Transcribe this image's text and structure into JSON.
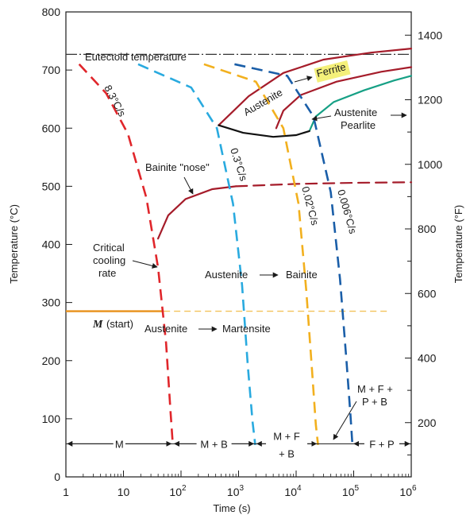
{
  "chart_data": {
    "type": "line",
    "title": "",
    "xlabel": "Time (s)",
    "ylabel": "Temperature (°C)",
    "y2label": "Temperature (°F)",
    "xscale": "log",
    "xlim": [
      1,
      1000000
    ],
    "ylim": [
      0,
      800
    ],
    "y2lim": [
      32,
      1472
    ],
    "xticks": [
      {
        "v": 1,
        "label": "1",
        "exp": ""
      },
      {
        "v": 10,
        "label": "10",
        "exp": ""
      },
      {
        "v": 100,
        "label": "10",
        "exp": "2"
      },
      {
        "v": 1000,
        "label": "10",
        "exp": "3"
      },
      {
        "v": 10000,
        "label": "10",
        "exp": "4"
      },
      {
        "v": 100000,
        "label": "10",
        "exp": "5"
      },
      {
        "v": 1000000,
        "label": "10",
        "exp": "6"
      }
    ],
    "yticks": [
      0,
      100,
      200,
      300,
      400,
      500,
      600,
      700,
      800
    ],
    "y2ticks": [
      200,
      400,
      600,
      800,
      1000,
      1200,
      1400
    ],
    "eutectoid_temperature": 727,
    "martensite_start": 285,
    "cooling_curves": [
      {
        "name": "8.3°C/s",
        "color": "#e0262b",
        "points": [
          [
            1.7,
            710
          ],
          [
            5,
            660
          ],
          [
            12,
            590
          ],
          [
            25,
            480
          ],
          [
            40,
            360
          ],
          [
            55,
            230
          ],
          [
            66,
            110
          ],
          [
            72,
            55
          ]
        ]
      },
      {
        "name": "0.3°C/s",
        "color": "#29aadf",
        "points": [
          [
            18,
            710
          ],
          [
            150,
            670
          ],
          [
            420,
            600
          ],
          [
            800,
            470
          ],
          [
            1150,
            330
          ],
          [
            1450,
            190
          ],
          [
            1750,
            95
          ],
          [
            1950,
            55
          ]
        ]
      },
      {
        "name": "0.02°C/s",
        "color": "#f2b01e",
        "points": [
          [
            250,
            710
          ],
          [
            2000,
            680
          ],
          [
            6000,
            600
          ],
          [
            11000,
            470
          ],
          [
            15000,
            320
          ],
          [
            19000,
            180
          ],
          [
            22000,
            90
          ],
          [
            24000,
            55
          ]
        ]
      },
      {
        "name": "0.006°C/s",
        "color": "#1a5ea8",
        "points": [
          [
            850,
            710
          ],
          [
            7000,
            690
          ],
          [
            20000,
            620
          ],
          [
            40000,
            490
          ],
          [
            58000,
            340
          ],
          [
            75000,
            200
          ],
          [
            88000,
            105
          ],
          [
            95000,
            55
          ]
        ]
      }
    ],
    "transformation_curves": [
      {
        "name": "Austenite → Ferrite start",
        "color": "#a51c2a",
        "points": [
          [
            450,
            605
          ],
          [
            1500,
            655
          ],
          [
            6000,
            695
          ],
          [
            30000,
            718
          ],
          [
            200000,
            730
          ],
          [
            1000000,
            737
          ]
        ]
      },
      {
        "name": "Austenite → Pearlite start",
        "color": "#a51c2a",
        "points": [
          [
            4500,
            600
          ],
          [
            6000,
            630
          ],
          [
            12000,
            657
          ],
          [
            50000,
            680
          ],
          [
            300000,
            697
          ],
          [
            1000000,
            705
          ]
        ]
      },
      {
        "name": "Austenite → Pearlite finish",
        "color": "#16a085",
        "points": [
          [
            17000,
            595
          ],
          [
            22000,
            620
          ],
          [
            45000,
            645
          ],
          [
            150000,
            665
          ],
          [
            500000,
            682
          ],
          [
            1000000,
            690
          ]
        ]
      },
      {
        "name": "Ferrite/Pearlite nose",
        "color": "#111111",
        "points": [
          [
            450,
            605
          ],
          [
            1200,
            592
          ],
          [
            4000,
            585
          ],
          [
            10000,
            588
          ],
          [
            17000,
            595
          ]
        ]
      },
      {
        "name": "Bainite start",
        "color": "#a51c2a",
        "points": [
          [
            40,
            410
          ],
          [
            60,
            450
          ],
          [
            120,
            478
          ],
          [
            350,
            495
          ],
          [
            900,
            500
          ]
        ]
      },
      {
        "name": "Bainite start (extended)",
        "color": "#a51c2a",
        "dashed": true,
        "points": [
          [
            900,
            500
          ],
          [
            10000,
            504
          ],
          [
            100000,
            506
          ],
          [
            1000000,
            507
          ]
        ]
      }
    ],
    "martensite_line": {
      "color": "#e8901a",
      "solid_to": 50,
      "dashed_to": 400000
    },
    "regions_line": {
      "y": 57,
      "segments": [
        {
          "label": "M",
          "from": 1,
          "to": 72
        },
        {
          "label": "M + B",
          "from": 72,
          "to": 1950
        },
        {
          "label1": "M + F",
          "label2": "+ B",
          "from": 1950,
          "to": 24000
        },
        {
          "label": "F + P",
          "from": 95000,
          "to": 1000000
        }
      ]
    },
    "annotations": {
      "eutectoid": "Eutectoid temperature",
      "rate_83": "8.3°C/s",
      "rate_03": "0.3°C/s",
      "rate_002": "0.02°C/s",
      "rate_0006": "0.006°C/s",
      "bainite_nose": "Bainite \"nose\"",
      "critical_1": "Critical",
      "critical_2": "cooling",
      "critical_3": "rate",
      "austenite_bainite_a": "Austenite",
      "austenite_bainite_b": "Bainite",
      "m_start": "M",
      "m_start_suffix": "(start)",
      "austenite_martensite_a": "Austenite",
      "austenite_martensite_b": "Martensite",
      "austenite_ferrite_a": "Austenite",
      "austenite_ferrite_b": "Ferrite",
      "austenite_pearlite_a": "Austenite",
      "austenite_pearlite_b": "Pearlite",
      "mfpb_1": "M + F +",
      "mfpb_2": "P + B"
    }
  }
}
